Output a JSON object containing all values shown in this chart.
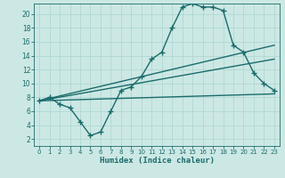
{
  "xlabel": "Humidex (Indice chaleur)",
  "ylabel": "",
  "background_color": "#cce8e4",
  "line_color": "#1a6b6b",
  "grid_color": "#aad4d0",
  "xlim": [
    -0.5,
    23.5
  ],
  "ylim": [
    1,
    21.5
  ],
  "xticks": [
    0,
    1,
    2,
    3,
    4,
    5,
    6,
    7,
    8,
    9,
    10,
    11,
    12,
    13,
    14,
    15,
    16,
    17,
    18,
    19,
    20,
    21,
    22,
    23
  ],
  "yticks": [
    2,
    4,
    6,
    8,
    10,
    12,
    14,
    16,
    18,
    20
  ],
  "series": [
    {
      "x": [
        0,
        1,
        2,
        3,
        4,
        5,
        6,
        7,
        8,
        9,
        10,
        11,
        12,
        13,
        14,
        15,
        16,
        17,
        18,
        19,
        20,
        21,
        22,
        23
      ],
      "y": [
        7.5,
        8.0,
        7.0,
        6.5,
        4.5,
        2.5,
        3.0,
        6.0,
        9.0,
        9.5,
        11.0,
        13.5,
        14.5,
        18.0,
        21.0,
        21.5,
        21.0,
        21.0,
        20.5,
        15.5,
        14.5,
        11.5,
        10.0,
        9.0
      ],
      "with_markers": true
    },
    {
      "x": [
        0,
        23
      ],
      "y": [
        7.5,
        15.5
      ],
      "with_markers": false
    },
    {
      "x": [
        0,
        23
      ],
      "y": [
        7.5,
        13.5
      ],
      "with_markers": false
    },
    {
      "x": [
        0,
        23
      ],
      "y": [
        7.5,
        8.5
      ],
      "with_markers": false
    }
  ],
  "marker": "+",
  "markersize": 4,
  "markeredgewidth": 1.0,
  "linewidth": 1.0
}
